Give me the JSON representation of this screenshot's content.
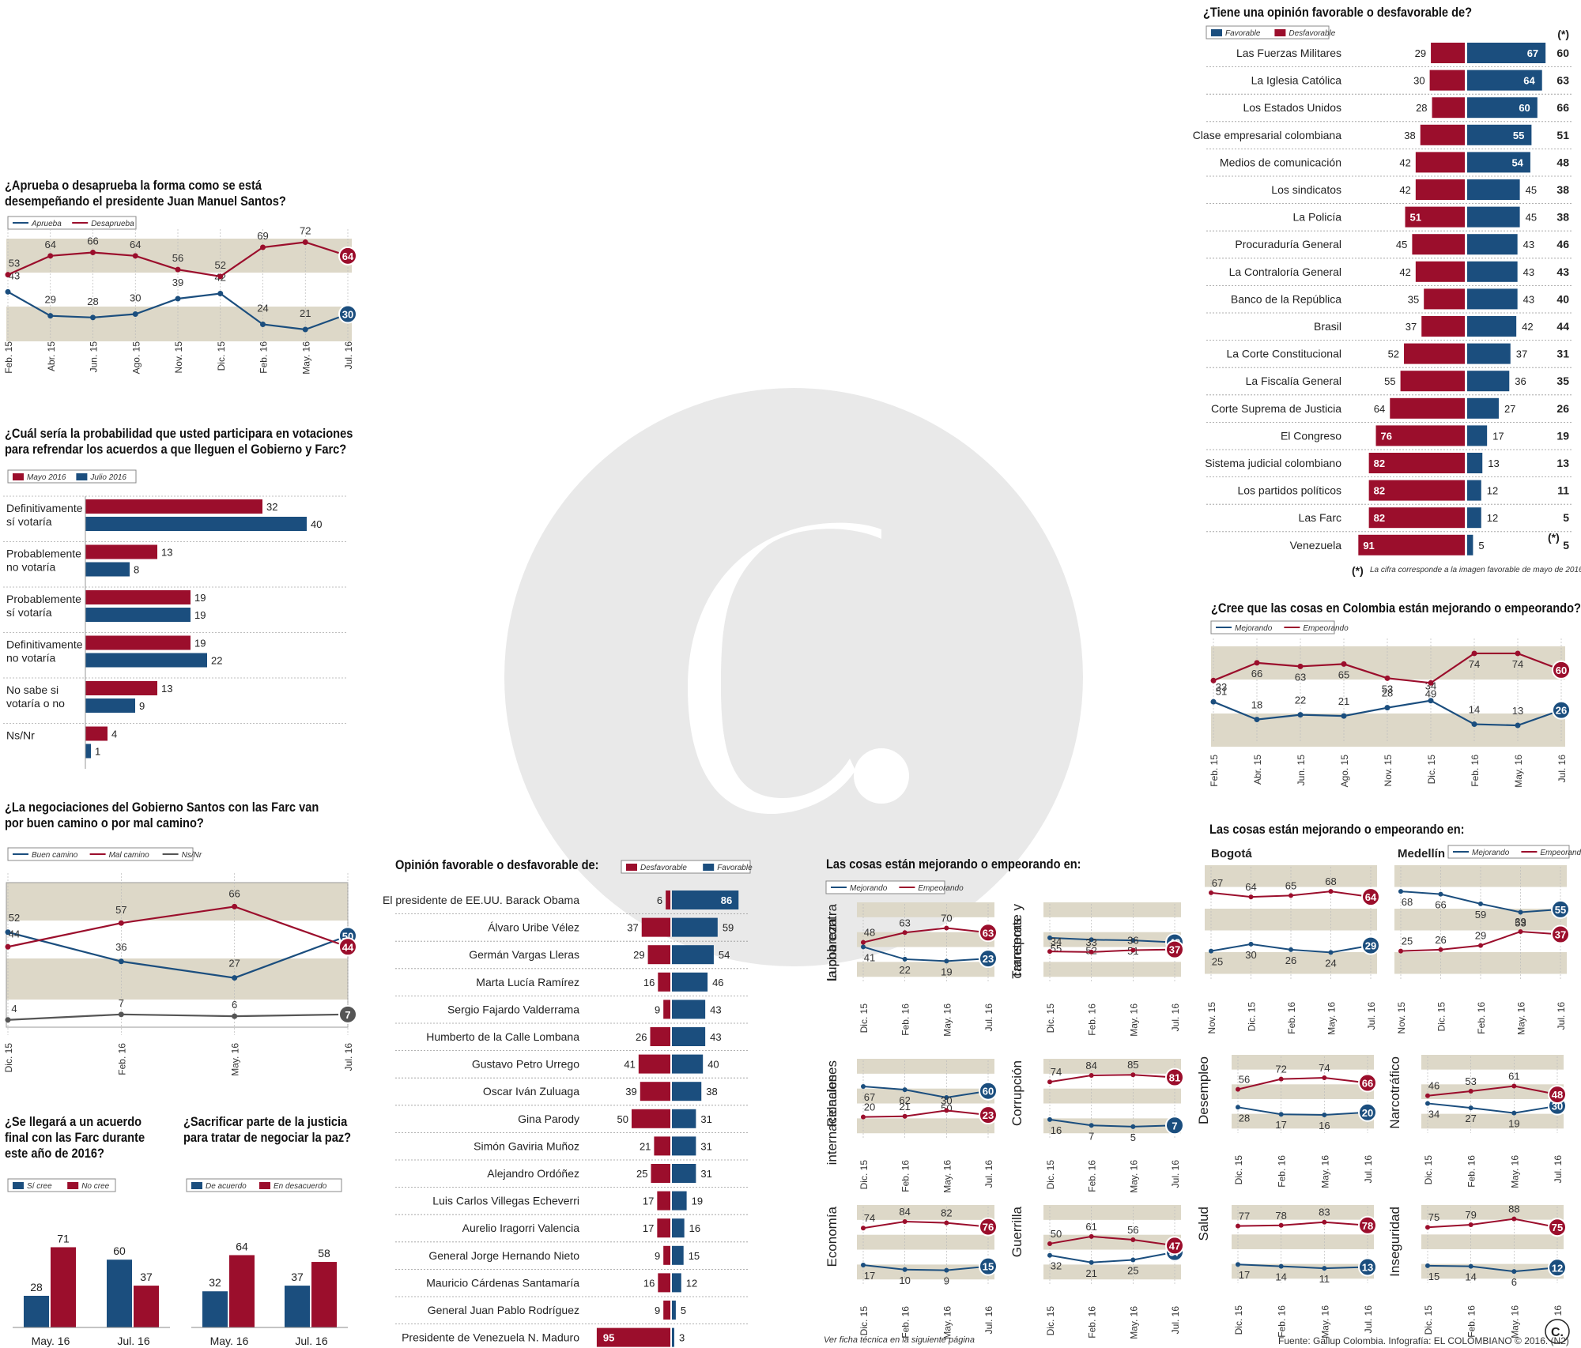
{
  "colors": {
    "blue": "#1b4e7e",
    "red": "#9b0e2c",
    "grey": "#555555",
    "band": "#ddd8c8"
  },
  "santos": {
    "title": "¿Aprueba o desaprueba la forma como se está\ndesempeñando el presidente Juan Manuel Santos?",
    "legend": [
      "Aprueba",
      "Desaprueba"
    ]
  },
  "probabilidad": {
    "title": "¿Cuál sería la probabilidad que usted participara en votaciones\npara refrendar los acuerdos a que lleguen el Gobierno y Farc?",
    "legend": [
      "Mayo 2016",
      "Julio 2016"
    ]
  },
  "negociaciones": {
    "title": "¿La negociaciones del Gobierno Santos con las Farc van\npor buen camino o por mal camino?",
    "legend": [
      "Buen camino",
      "Mal camino",
      "Ns/Nr"
    ]
  },
  "acuerdo": {
    "title": "¿Se llegará a un acuerdo\nfinal con las Farc durante\neste año de 2016?",
    "legend": [
      "Sí cree",
      "No cree"
    ]
  },
  "justicia": {
    "title": "¿Sacrificar parte de la justicia\npara tratar de negociar la paz?",
    "legend": [
      "De acuerdo",
      "En desacuerdo"
    ]
  },
  "personas": {
    "title": "Opinión favorable o desfavorable de:",
    "legend": [
      "Desfavorable",
      "Favorable"
    ]
  },
  "instituciones": {
    "title": "¿Tiene una opinión favorable o desfavorable de?",
    "legend": [
      "Favorable",
      "Desfavorable"
    ],
    "star": "(*)",
    "footnote_star": "(*)",
    "footnote": "La cifra corresponde a la imagen favorable de mayo de 2016"
  },
  "colombia": {
    "title": "¿Cree que las cosas en Colombia están mejorando o empeorando?",
    "legend": [
      "Mejorando",
      "Empeorando"
    ]
  },
  "cosas": {
    "title": "Las cosas están mejorando o empeorando en:",
    "legend": [
      "Mejorando",
      "Empeorando"
    ]
  },
  "ciudades": {
    "title": "Las cosas están mejorando o empeorando en:",
    "legend": [
      "Mejorando",
      "Empeorando"
    ]
  },
  "footer": {
    "ficha": "Ver ficha técnica en la siguiente página",
    "fuente": "Fuente: Gallup Colombia. Infografía: EL COLOMBIANO © 2016. (N2)",
    "logo": "C."
  },
  "chart_data": [
    {
      "id": "santos",
      "type": "line",
      "x": [
        "Feb. 15",
        "Abr. 15",
        "Jun. 15",
        "Ago. 15",
        "Nov. 15",
        "Dic. 15",
        "Feb. 16",
        "May. 16",
        "Jul. 16"
      ],
      "series": [
        {
          "name": "Aprueba",
          "values": [
            43,
            29,
            28,
            30,
            39,
            42,
            24,
            21,
            30
          ]
        },
        {
          "name": "Desaprueba",
          "values": [
            53,
            64,
            66,
            64,
            56,
            52,
            69,
            72,
            64
          ]
        }
      ]
    },
    {
      "id": "probabilidad",
      "type": "bar",
      "categories": [
        "Definitivamente\nsí votaría",
        "Probablemente\nno votaría",
        "Probablemente\nsí votaría",
        "Definitivamente\nno votaría",
        "No sabe si\nvotaría o no",
        "Ns/Nr"
      ],
      "series": [
        {
          "name": "Mayo 2016",
          "values": [
            32,
            13,
            19,
            19,
            13,
            4
          ]
        },
        {
          "name": "Julio 2016",
          "values": [
            40,
            8,
            19,
            22,
            9,
            1
          ]
        }
      ]
    },
    {
      "id": "negociaciones",
      "type": "line",
      "x": [
        "Dic. 15",
        "Feb. 16",
        "May. 16",
        "Jul. 16"
      ],
      "series": [
        {
          "name": "Buen camino",
          "values": [
            52,
            36,
            27,
            50
          ]
        },
        {
          "name": "Mal camino",
          "values": [
            44,
            57,
            66,
            44
          ]
        },
        {
          "name": "Ns/Nr",
          "values": [
            4,
            7,
            6,
            7
          ]
        }
      ]
    },
    {
      "id": "acuerdo",
      "type": "bar",
      "categories": [
        "May. 16",
        "Jul. 16"
      ],
      "series": [
        {
          "name": "Sí cree",
          "values": [
            28,
            60
          ]
        },
        {
          "name": "No cree",
          "values": [
            71,
            37
          ]
        }
      ]
    },
    {
      "id": "justicia",
      "type": "bar",
      "categories": [
        "May. 16",
        "Jul. 16"
      ],
      "series": [
        {
          "name": "De acuerdo",
          "values": [
            32,
            37
          ]
        },
        {
          "name": "En desacuerdo",
          "values": [
            64,
            58
          ]
        }
      ]
    },
    {
      "id": "personas",
      "type": "bar",
      "categories": [
        "El presidente de EE.UU. Barack Obama",
        "Álvaro Uribe Vélez",
        "Germán Vargas Lleras",
        "Marta Lucía Ramírez",
        "Sergio Fajardo Valderrama",
        "Humberto de la Calle Lombana",
        "Gustavo Petro Urrego",
        "Oscar Iván Zuluaga",
        "Gina Parody",
        "Simón Gaviria Muñoz",
        "Alejandro Ordóñez",
        "Luis Carlos Villegas Echeverri",
        "Aurelio Iragorri Valencia",
        "General Jorge Hernando Nieto",
        "Mauricio Cárdenas Santamaría",
        "General Juan Pablo Rodríguez",
        "Presidente de Venezuela N. Maduro"
      ],
      "series": [
        {
          "name": "Desfavorable",
          "values": [
            6,
            37,
            29,
            16,
            9,
            26,
            41,
            39,
            50,
            21,
            25,
            17,
            17,
            9,
            16,
            9,
            95
          ]
        },
        {
          "name": "Favorable",
          "values": [
            86,
            59,
            54,
            46,
            43,
            43,
            40,
            38,
            31,
            31,
            31,
            19,
            16,
            15,
            12,
            5,
            3
          ]
        }
      ]
    },
    {
      "id": "instituciones",
      "type": "bar",
      "categories": [
        "Las Fuerzas Militares",
        "La Iglesia Católica",
        "Los Estados Unidos",
        "Clase empresarial colombiana",
        "Medios de comunicación",
        "Los sindicatos",
        "La Policía",
        "Procuraduría General",
        "La Contraloría General",
        "Banco de la República",
        "Brasil",
        "La Corte Constitucional",
        "La Fiscalía General",
        "Corte Suprema de Justicia",
        "El Congreso",
        "Sistema judicial colombiano",
        "Los partidos políticos",
        "Las Farc",
        "Venezuela"
      ],
      "series": [
        {
          "name": "Desfavorable",
          "values": [
            29,
            30,
            28,
            38,
            42,
            42,
            51,
            45,
            42,
            35,
            37,
            52,
            55,
            64,
            76,
            82,
            82,
            82,
            91
          ]
        },
        {
          "name": "Favorable",
          "values": [
            67,
            64,
            60,
            55,
            54,
            45,
            45,
            43,
            43,
            43,
            42,
            37,
            36,
            27,
            17,
            13,
            12,
            12,
            5
          ]
        },
        {
          "name": "(*)",
          "values": [
            60,
            63,
            66,
            51,
            48,
            38,
            38,
            46,
            43,
            40,
            44,
            31,
            35,
            26,
            19,
            13,
            11,
            5,
            5
          ]
        }
      ]
    },
    {
      "id": "colombia",
      "type": "line",
      "x": [
        "Feb. 15",
        "Abr. 15",
        "Jun. 15",
        "Ago. 15",
        "Nov. 15",
        "Dic. 15",
        "Feb. 16",
        "May. 16",
        "Jul. 16"
      ],
      "series": [
        {
          "name": "Mejorando",
          "values": [
            33,
            18,
            22,
            21,
            28,
            34,
            14,
            13,
            26
          ]
        },
        {
          "name": "Empeorando",
          "values": [
            51,
            66,
            63,
            65,
            53,
            49,
            74,
            74,
            60
          ]
        }
      ]
    },
    {
      "id": "lucha_pobreza",
      "type": "line",
      "label": "Lucha contra\nla pobreza",
      "x": [
        "Dic. 15",
        "Feb. 16",
        "May. 16",
        "Jul. 16"
      ],
      "series": [
        {
          "name": "Mejorando",
          "values": [
            41,
            22,
            19,
            23
          ]
        },
        {
          "name": "Empeorando",
          "values": [
            48,
            63,
            70,
            63
          ]
        }
      ]
    },
    {
      "id": "transporte",
      "type": "line",
      "label": "Transporte y\ncarreteras",
      "x": [
        "Dic. 15",
        "Feb. 16",
        "May. 16",
        "Jul. 16"
      ],
      "series": [
        {
          "name": "Mejorando",
          "values": [
            55,
            52,
            51,
            48
          ]
        },
        {
          "name": "Empeorando",
          "values": [
            34,
            33,
            36,
            37
          ]
        }
      ]
    },
    {
      "id": "relaciones",
      "type": "line",
      "label": "Relaciones\ninternacionales",
      "x": [
        "Dic. 15",
        "Feb. 16",
        "May. 16",
        "Jul. 16"
      ],
      "series": [
        {
          "name": "Mejorando",
          "values": [
            67,
            62,
            50,
            60
          ]
        },
        {
          "name": "Empeorando",
          "values": [
            20,
            21,
            30,
            23
          ]
        }
      ]
    },
    {
      "id": "corrupcion",
      "type": "line",
      "label": "Corrupción",
      "x": [
        "Dic. 15",
        "Feb. 16",
        "May. 16",
        "Jul. 16"
      ],
      "series": [
        {
          "name": "Mejorando",
          "values": [
            16,
            7,
            5,
            7
          ]
        },
        {
          "name": "Empeorando",
          "values": [
            74,
            84,
            85,
            81
          ]
        }
      ]
    },
    {
      "id": "economia",
      "type": "line",
      "label": "Economía",
      "x": [
        "Dic. 15",
        "Feb. 16",
        "May. 16",
        "Jul. 16"
      ],
      "series": [
        {
          "name": "Mejorando",
          "values": [
            17,
            10,
            9,
            15
          ]
        },
        {
          "name": "Empeorando",
          "values": [
            74,
            84,
            82,
            76
          ]
        }
      ]
    },
    {
      "id": "guerrilla",
      "type": "line",
      "label": "Guerrilla",
      "x": [
        "Dic. 15",
        "Feb. 16",
        "May. 16",
        "Jul. 16"
      ],
      "series": [
        {
          "name": "Mejorando",
          "values": [
            32,
            21,
            25,
            37
          ]
        },
        {
          "name": "Empeorando",
          "values": [
            50,
            61,
            56,
            47
          ]
        }
      ]
    },
    {
      "id": "bogota",
      "type": "line",
      "label": "Bogotá",
      "x": [
        "Nov. 15",
        "Dic. 15",
        "Feb. 16",
        "May. 16",
        "Jul. 16"
      ],
      "series": [
        {
          "name": "Mejorando",
          "values": [
            25,
            30,
            26,
            24,
            29
          ]
        },
        {
          "name": "Empeorando",
          "values": [
            67,
            64,
            65,
            68,
            64
          ]
        }
      ]
    },
    {
      "id": "medellin",
      "type": "line",
      "label": "Medellín",
      "x": [
        "Nov. 15",
        "Dic. 15",
        "Feb. 16",
        "May. 16",
        "Jul. 16"
      ],
      "series": [
        {
          "name": "Mejorando",
          "values": [
            68,
            66,
            59,
            53,
            55
          ]
        },
        {
          "name": "Empeorando",
          "values": [
            25,
            26,
            29,
            39,
            37
          ]
        }
      ]
    },
    {
      "id": "desempleo",
      "type": "line",
      "label": "Desempleo",
      "x": [
        "Dic. 15",
        "Feb. 16",
        "May. 16",
        "Jul. 16"
      ],
      "series": [
        {
          "name": "Mejorando",
          "values": [
            28,
            17,
            16,
            20
          ]
        },
        {
          "name": "Empeorando",
          "values": [
            56,
            72,
            74,
            66
          ]
        }
      ]
    },
    {
      "id": "narcotrafico",
      "type": "line",
      "label": "Narcotráfico",
      "x": [
        "Dic. 15",
        "Feb. 16",
        "May. 16",
        "Jul. 16"
      ],
      "series": [
        {
          "name": "Mejorando",
          "values": [
            34,
            27,
            19,
            30
          ]
        },
        {
          "name": "Empeorando",
          "values": [
            46,
            53,
            61,
            48
          ]
        }
      ]
    },
    {
      "id": "salud",
      "type": "line",
      "label": "Salud",
      "x": [
        "Dic. 15",
        "Feb. 16",
        "May. 16",
        "Jul. 16"
      ],
      "series": [
        {
          "name": "Mejorando",
          "values": [
            17,
            14,
            11,
            13
          ]
        },
        {
          "name": "Empeorando",
          "values": [
            77,
            78,
            83,
            78
          ]
        }
      ]
    },
    {
      "id": "inseguridad",
      "type": "line",
      "label": "Inseguridad",
      "x": [
        "Dic. 15",
        "Feb. 16",
        "May. 16",
        "Jul. 16"
      ],
      "series": [
        {
          "name": "Mejorando",
          "values": [
            15,
            14,
            6,
            12
          ]
        },
        {
          "name": "Empeorando",
          "values": [
            75,
            79,
            88,
            75
          ]
        }
      ]
    }
  ]
}
